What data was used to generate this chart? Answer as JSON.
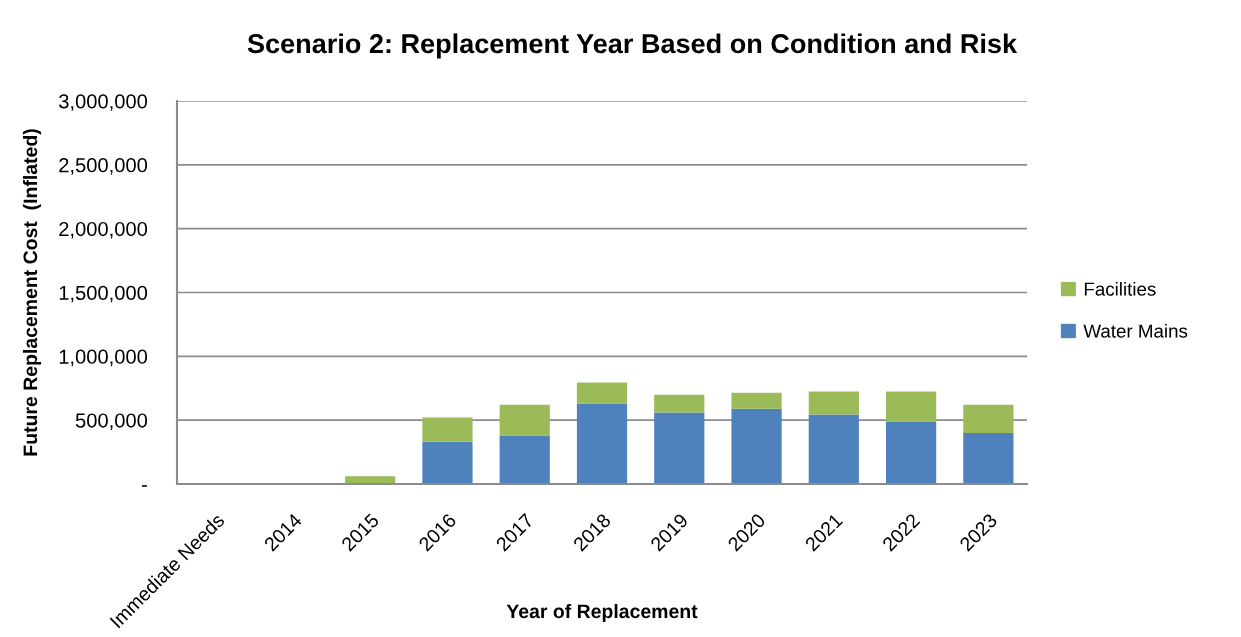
{
  "chart_data": {
    "type": "bar",
    "title": "Scenario 2: Replacement Year Based on Condition and Risk",
    "xlabel": "Year of Replacement",
    "ylabel": "Future Replacement Cost  (Inflated)",
    "categories": [
      "Immediate Needs",
      "2014",
      "2015",
      "2016",
      "2017",
      "2018",
      "2019",
      "2020",
      "2021",
      "2022",
      "2023"
    ],
    "stacked": true,
    "series": [
      {
        "name": "Water Mains",
        "color": "#4f81bd",
        "values": [
          0,
          0,
          0,
          330000,
          380000,
          630000,
          560000,
          590000,
          545000,
          490000,
          400000
        ]
      },
      {
        "name": "Facilities",
        "color": "#9bbb59",
        "values": [
          0,
          0,
          60000,
          190000,
          240000,
          165000,
          140000,
          125000,
          180000,
          235000,
          220000
        ]
      }
    ],
    "ylim": [
      0,
      3000000
    ],
    "yticks": [
      {
        "value": 0,
        "label": "-"
      },
      {
        "value": 500000,
        "label": "500,000"
      },
      {
        "value": 1000000,
        "label": "1,000,000"
      },
      {
        "value": 1500000,
        "label": "1,500,000"
      },
      {
        "value": 2000000,
        "label": "2,000,000"
      },
      {
        "value": 2500000,
        "label": "2,500,000"
      },
      {
        "value": 3000000,
        "label": "3,000,000"
      }
    ],
    "grid": "y",
    "legend": "right"
  }
}
